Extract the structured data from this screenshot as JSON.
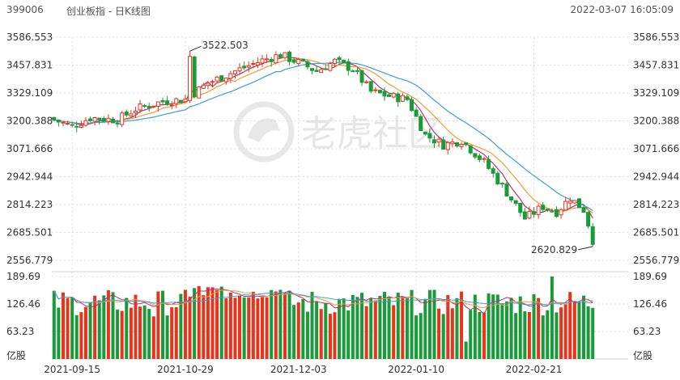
{
  "header": {
    "code": "399006",
    "name": "创业板指 - 日K线图",
    "datetime": "2022-03-07 16:05:09"
  },
  "watermark": "老虎社区",
  "chart_data": [
    {
      "type": "candlestick",
      "ylim": [
        2556.779,
        3586.553
      ],
      "y_ticks": [
        "3586.553",
        "3457.831",
        "3329.109",
        "3200.388",
        "3071.666",
        "2942.944",
        "2814.223",
        "2685.501",
        "2556.779"
      ],
      "annotations": [
        {
          "label": "3522.503",
          "index": 30,
          "value": 3522.503
        },
        {
          "label": "2620.829",
          "index": 119,
          "value": 2620.829
        }
      ],
      "x_labels": [
        {
          "index": 4,
          "label": "2021-09-15"
        },
        {
          "index": 29,
          "label": "2021-10-29"
        },
        {
          "index": 54,
          "label": "2021-12-03"
        },
        {
          "index": 80,
          "label": "2022-01-10"
        },
        {
          "index": 106,
          "label": "2022-02-21"
        }
      ],
      "colors": {
        "up": "#e8341c",
        "down": "#1a9b3a",
        "ma5": "#c0306a",
        "ma10": "#f29a38",
        "ma20": "#3aa0d8"
      },
      "x_count": 120
    },
    {
      "type": "bar",
      "ylim": [
        0,
        189.69
      ],
      "y_ticks": [
        "189.69",
        "126.46",
        "63.23"
      ],
      "unit": "亿股"
    }
  ]
}
